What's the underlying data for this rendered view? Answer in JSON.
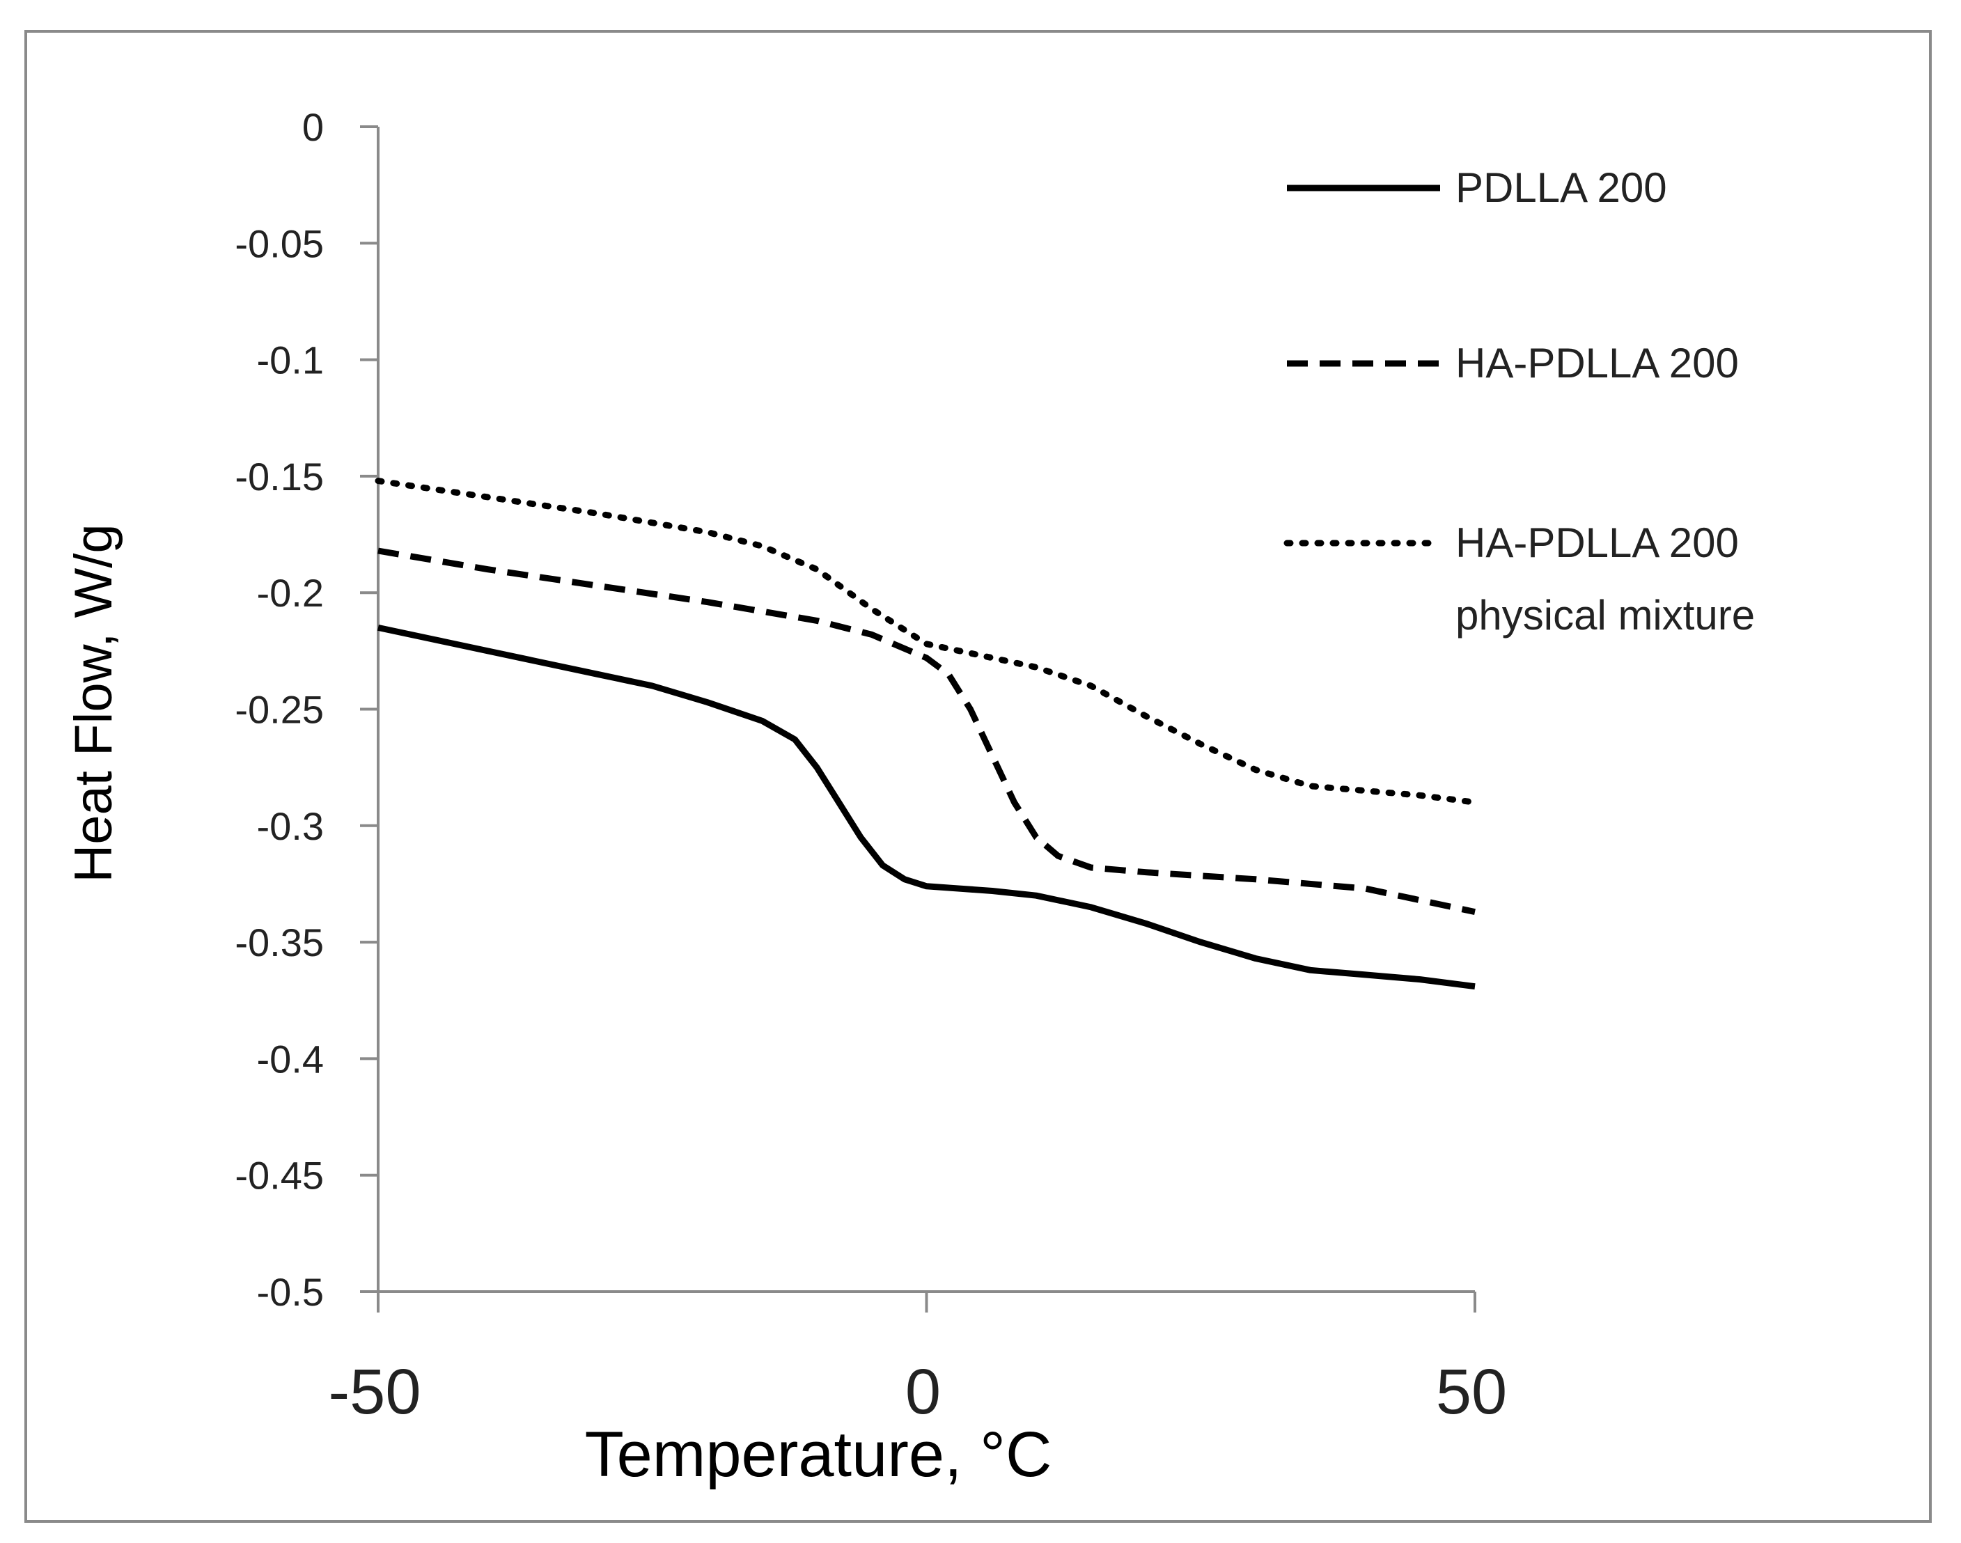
{
  "chart_data": {
    "type": "line",
    "title": "",
    "xlabel": "Temperature, °C",
    "ylabel": "Heat Flow, W/g",
    "xlim": [
      -50,
      50
    ],
    "ylim": [
      -0.5,
      0
    ],
    "x_ticks": [
      "-50",
      "0",
      "50"
    ],
    "y_ticks": [
      "0",
      "-0.05",
      "-0.1",
      "-0.15",
      "-0.2",
      "-0.25",
      "-0.3",
      "-0.35",
      "-0.4",
      "-0.45",
      "-0.5"
    ],
    "grid": false,
    "legend_position": "top-right",
    "series": [
      {
        "name": "PDLLA 200",
        "style": "solid",
        "color": "#000000",
        "x": [
          -50,
          -45,
          -40,
          -35,
          -30,
          -25,
          -20,
          -15,
          -12,
          -10,
          -8,
          -6,
          -4,
          -2,
          0,
          3,
          6,
          10,
          15,
          20,
          25,
          30,
          35,
          40,
          45,
          50
        ],
        "y": [
          -0.215,
          -0.22,
          -0.225,
          -0.23,
          -0.235,
          -0.24,
          -0.247,
          -0.255,
          -0.263,
          -0.275,
          -0.29,
          -0.305,
          -0.317,
          -0.323,
          -0.326,
          -0.327,
          -0.328,
          -0.33,
          -0.335,
          -0.342,
          -0.35,
          -0.357,
          -0.362,
          -0.364,
          -0.366,
          -0.369
        ]
      },
      {
        "name": "HA-PDLLA 200",
        "style": "dashed",
        "color": "#000000",
        "x": [
          -50,
          -40,
          -30,
          -20,
          -10,
          -5,
          0,
          2,
          4,
          6,
          8,
          10,
          12,
          15,
          20,
          30,
          40,
          50
        ],
        "y": [
          -0.182,
          -0.19,
          -0.197,
          -0.204,
          -0.212,
          -0.218,
          -0.228,
          -0.235,
          -0.25,
          -0.27,
          -0.29,
          -0.305,
          -0.313,
          -0.318,
          -0.32,
          -0.323,
          -0.327,
          -0.337
        ]
      },
      {
        "name": "HA-PDLLA 200 physical mixture",
        "name_lines": [
          "HA-PDLLA 200",
          "physical mixture"
        ],
        "style": "dotted",
        "color": "#000000",
        "x": [
          -50,
          -40,
          -30,
          -20,
          -15,
          -10,
          -5,
          0,
          5,
          10,
          15,
          20,
          25,
          30,
          35,
          40,
          45,
          50
        ],
        "y": [
          -0.152,
          -0.159,
          -0.166,
          -0.174,
          -0.18,
          -0.19,
          -0.207,
          -0.222,
          -0.227,
          -0.232,
          -0.24,
          -0.253,
          -0.265,
          -0.276,
          -0.283,
          -0.285,
          -0.287,
          -0.29
        ]
      }
    ]
  }
}
